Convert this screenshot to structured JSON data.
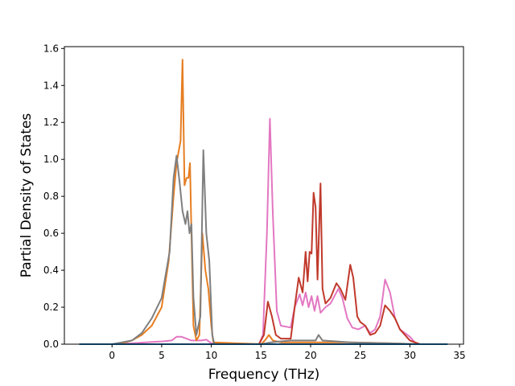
{
  "chart_data": {
    "type": "line",
    "title": "",
    "xlabel": "Frequency (THz)",
    "ylabel": "Partial Density of States",
    "xlim": [
      -4.8,
      35.4
    ],
    "ylim": [
      0,
      1.61
    ],
    "xticks": [
      0,
      5,
      10,
      15,
      20,
      25,
      30,
      35
    ],
    "yticks": [
      0.0,
      0.2,
      0.4,
      0.6,
      0.8,
      1.0,
      1.2,
      1.4,
      1.6
    ],
    "xtick_labels": [
      "0",
      "5",
      "10",
      "15",
      "20",
      "25",
      "30",
      "35"
    ],
    "ytick_labels": [
      "0.0",
      "0.2",
      "0.4",
      "0.6",
      "0.8",
      "1.0",
      "1.2",
      "1.4",
      "1.6"
    ],
    "grid": false,
    "legend": "none",
    "series": [
      {
        "color": "#e377c2",
        "points": [
          [
            -3.3,
            0
          ],
          [
            0,
            0
          ],
          [
            2,
            0.005
          ],
          [
            4,
            0.012
          ],
          [
            5,
            0.015
          ],
          [
            6,
            0.02
          ],
          [
            6.5,
            0.04
          ],
          [
            7,
            0.04
          ],
          [
            7.5,
            0.03
          ],
          [
            8,
            0.02
          ],
          [
            9,
            0.02
          ],
          [
            9.5,
            0.025
          ],
          [
            10,
            0.005
          ],
          [
            14.8,
            0
          ],
          [
            15.2,
            0.05
          ],
          [
            15.6,
            0.6
          ],
          [
            15.9,
            1.22
          ],
          [
            16.2,
            0.7
          ],
          [
            16.6,
            0.18
          ],
          [
            17,
            0.1
          ],
          [
            18,
            0.09
          ],
          [
            18.4,
            0.2
          ],
          [
            18.9,
            0.27
          ],
          [
            19.2,
            0.21
          ],
          [
            19.5,
            0.28
          ],
          [
            19.8,
            0.2
          ],
          [
            20.1,
            0.26
          ],
          [
            20.4,
            0.18
          ],
          [
            20.7,
            0.26
          ],
          [
            21,
            0.17
          ],
          [
            21.5,
            0.2
          ],
          [
            22,
            0.22
          ],
          [
            22.8,
            0.3
          ],
          [
            23.2,
            0.25
          ],
          [
            23.7,
            0.14
          ],
          [
            24.2,
            0.09
          ],
          [
            24.8,
            0.08
          ],
          [
            25.5,
            0.1
          ],
          [
            26,
            0.06
          ],
          [
            26.5,
            0.08
          ],
          [
            27,
            0.15
          ],
          [
            27.5,
            0.35
          ],
          [
            28,
            0.28
          ],
          [
            28.5,
            0.14
          ],
          [
            29,
            0.08
          ],
          [
            30,
            0.04
          ],
          [
            30.5,
            0.01
          ],
          [
            31,
            0
          ]
        ]
      },
      {
        "color": "#e67e22",
        "points": [
          [
            -3.3,
            0
          ],
          [
            0,
            0
          ],
          [
            1,
            0.005
          ],
          [
            2,
            0.02
          ],
          [
            3,
            0.05
          ],
          [
            4,
            0.1
          ],
          [
            5,
            0.2
          ],
          [
            5.7,
            0.45
          ],
          [
            6.2,
            0.8
          ],
          [
            6.5,
            0.98
          ],
          [
            6.9,
            1.1
          ],
          [
            7.1,
            1.54
          ],
          [
            7.3,
            0.86
          ],
          [
            7.5,
            0.9
          ],
          [
            7.7,
            0.9
          ],
          [
            7.85,
            0.98
          ],
          [
            8,
            0.6
          ],
          [
            8.2,
            0.1
          ],
          [
            8.5,
            0.02
          ],
          [
            8.8,
            0.05
          ],
          [
            9.1,
            0.6
          ],
          [
            9.4,
            0.4
          ],
          [
            9.7,
            0.3
          ],
          [
            10,
            0.1
          ],
          [
            10.2,
            0.01
          ],
          [
            15,
            0
          ],
          [
            15.4,
            0.02
          ],
          [
            15.8,
            0.05
          ],
          [
            16.2,
            0.02
          ],
          [
            17,
            0.01
          ],
          [
            19,
            0.01
          ],
          [
            21,
            0.01
          ],
          [
            24,
            0.01
          ],
          [
            28,
            0.005
          ],
          [
            31,
            0
          ]
        ]
      },
      {
        "color": "#7f7f7f",
        "points": [
          [
            -3.3,
            0
          ],
          [
            0,
            0
          ],
          [
            1,
            0.01
          ],
          [
            2,
            0.02
          ],
          [
            3,
            0.06
          ],
          [
            4,
            0.14
          ],
          [
            5,
            0.25
          ],
          [
            5.8,
            0.5
          ],
          [
            6.2,
            0.9
          ],
          [
            6.5,
            1.02
          ],
          [
            6.8,
            0.88
          ],
          [
            7.1,
            0.72
          ],
          [
            7.4,
            0.65
          ],
          [
            7.6,
            0.72
          ],
          [
            7.8,
            0.6
          ],
          [
            8.0,
            0.65
          ],
          [
            8.2,
            0.25
          ],
          [
            8.5,
            0.05
          ],
          [
            8.9,
            0.15
          ],
          [
            9.2,
            1.05
          ],
          [
            9.5,
            0.6
          ],
          [
            9.8,
            0.45
          ],
          [
            10.1,
            0.05
          ],
          [
            10.3,
            0
          ],
          [
            15,
            0
          ],
          [
            16,
            0.01
          ],
          [
            18,
            0.02
          ],
          [
            20,
            0.02
          ],
          [
            20.5,
            0.02
          ],
          [
            20.8,
            0.05
          ],
          [
            21.2,
            0.02
          ],
          [
            24,
            0.01
          ],
          [
            28,
            0.005
          ],
          [
            31,
            0
          ]
        ]
      },
      {
        "color": "#c0392b",
        "points": [
          [
            -3.3,
            0
          ],
          [
            9,
            0
          ],
          [
            14.8,
            0
          ],
          [
            15.3,
            0.05
          ],
          [
            15.7,
            0.23
          ],
          [
            16.1,
            0.15
          ],
          [
            16.5,
            0.05
          ],
          [
            17,
            0.03
          ],
          [
            18,
            0.03
          ],
          [
            18.4,
            0.2
          ],
          [
            18.8,
            0.36
          ],
          [
            19.2,
            0.28
          ],
          [
            19.5,
            0.5
          ],
          [
            19.7,
            0.34
          ],
          [
            19.9,
            0.5
          ],
          [
            20.1,
            0.49
          ],
          [
            20.3,
            0.82
          ],
          [
            20.5,
            0.74
          ],
          [
            20.7,
            0.35
          ],
          [
            21,
            0.87
          ],
          [
            21.2,
            0.3
          ],
          [
            21.5,
            0.22
          ],
          [
            22,
            0.25
          ],
          [
            22.6,
            0.33
          ],
          [
            23,
            0.3
          ],
          [
            23.5,
            0.24
          ],
          [
            24,
            0.43
          ],
          [
            24.3,
            0.36
          ],
          [
            24.7,
            0.15
          ],
          [
            25,
            0.12
          ],
          [
            25.5,
            0.1
          ],
          [
            26,
            0.05
          ],
          [
            26.5,
            0.06
          ],
          [
            27,
            0.1
          ],
          [
            27.5,
            0.21
          ],
          [
            28,
            0.18
          ],
          [
            28.5,
            0.14
          ],
          [
            29,
            0.08
          ],
          [
            30,
            0.02
          ],
          [
            30.5,
            0.01
          ],
          [
            31,
            0
          ]
        ]
      },
      {
        "color": "#1f77b4",
        "points": [
          [
            -3.3,
            0
          ],
          [
            33.8,
            0
          ]
        ]
      }
    ]
  }
}
